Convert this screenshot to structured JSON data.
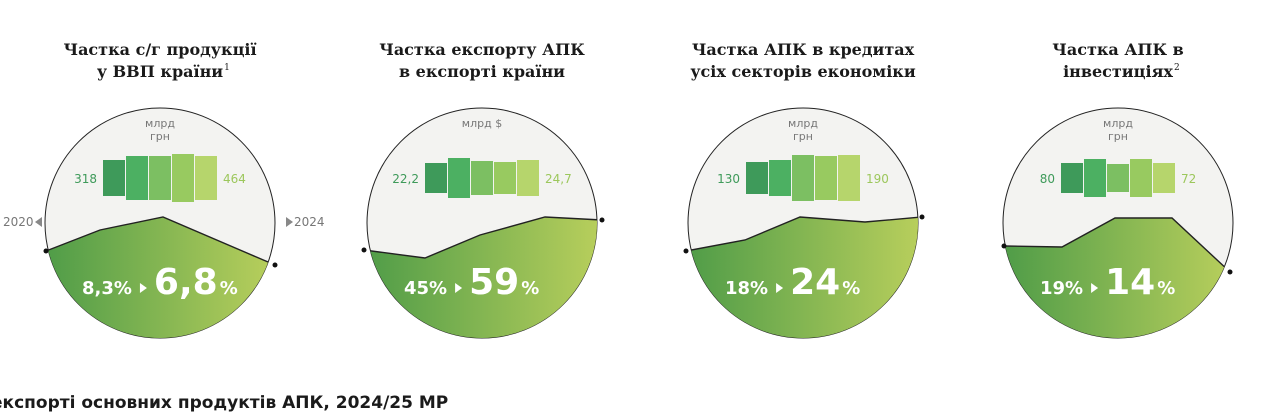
{
  "years": {
    "start": "2020",
    "end": "2024"
  },
  "panels": [
    {
      "title": [
        "Частка с/г продукції",
        "у ВВП країни"
      ],
      "sup": "1",
      "unit": [
        "млрд",
        "грн"
      ],
      "first": "318",
      "last": "464",
      "share_start": "8,3%",
      "share_end": "6,8",
      "share_end_unit": "%"
    },
    {
      "title": [
        "Частка експорту АПК",
        "в експорті країни"
      ],
      "unit": [
        "млрд $"
      ],
      "first": "22,2",
      "last": "24,7",
      "share_start": "45%",
      "share_end": "59",
      "share_end_unit": "%"
    },
    {
      "title": [
        "Частка АПК в кредитах",
        "усіх секторів економіки"
      ],
      "unit": [
        "млрд",
        "грн"
      ],
      "first": "130",
      "last": "190",
      "share_start": "18%",
      "share_end": "24",
      "share_end_unit": "%"
    },
    {
      "title": [
        "Частка АПК в",
        "інвестиціях"
      ],
      "sup": "2",
      "unit": [
        "млрд",
        "грн"
      ],
      "first": "80",
      "last": "72",
      "share_start": "19%",
      "share_end": "14",
      "share_end_unit": "%"
    }
  ],
  "footer": "експорті основних продуктів АПК, 2024/25 МР"
}
